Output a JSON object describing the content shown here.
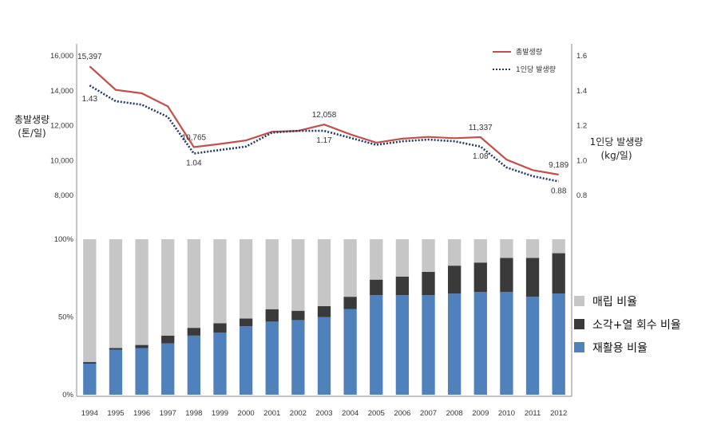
{
  "chart_data": [
    {
      "type": "line",
      "x": [
        "1994",
        "1995",
        "1996",
        "1997",
        "1998",
        "1999",
        "2000",
        "2001",
        "2002",
        "2003",
        "2004",
        "2005",
        "2006",
        "2007",
        "2008",
        "2009",
        "2010",
        "2011",
        "2012"
      ],
      "left_axis": {
        "title_line1": "총발생량",
        "title_line2": "(톤/일)",
        "ylim": [
          8000,
          16000
        ],
        "ticks": [
          "8,000",
          "10,000",
          "12,000",
          "14,000",
          "16,000"
        ]
      },
      "right_axis": {
        "title_line1": "1인당 발생량",
        "title_line2": "(kg/일)",
        "ylim": [
          0.8,
          1.6
        ],
        "ticks": [
          "0.8",
          "1.0",
          "1.2",
          "1.4",
          "1.6"
        ]
      },
      "series": [
        {
          "name": "총발생량",
          "axis": "left",
          "color": "#c0504d",
          "style": "solid",
          "values": [
            15397,
            14050,
            13850,
            13100,
            10765,
            10950,
            11150,
            11650,
            11700,
            12058,
            11500,
            11020,
            11250,
            11350,
            11280,
            11337,
            10050,
            9450,
            9189
          ],
          "labels": [
            {
              "i": 0,
              "text": "15,397"
            },
            {
              "i": 4,
              "text": "10,765"
            },
            {
              "i": 9,
              "text": "12,058"
            },
            {
              "i": 15,
              "text": "11,337"
            },
            {
              "i": 18,
              "text": "9,189"
            }
          ]
        },
        {
          "name": "1인당 발생량",
          "axis": "right",
          "color": "#1f3864",
          "style": "dotted",
          "values": [
            1.43,
            1.34,
            1.32,
            1.25,
            1.04,
            1.06,
            1.08,
            1.16,
            1.17,
            1.17,
            1.13,
            1.09,
            1.11,
            1.12,
            1.11,
            1.08,
            0.96,
            0.91,
            0.88
          ],
          "labels": [
            {
              "i": 0,
              "text": "1.43"
            },
            {
              "i": 4,
              "text": "1.04"
            },
            {
              "i": 9,
              "text": "1.17"
            },
            {
              "i": 15,
              "text": "1.08"
            },
            {
              "i": 18,
              "text": "0.88"
            }
          ]
        }
      ]
    },
    {
      "type": "bar",
      "stacked": true,
      "x": [
        "1994",
        "1995",
        "1996",
        "1997",
        "1998",
        "1999",
        "2000",
        "2001",
        "2002",
        "2003",
        "2004",
        "2005",
        "2006",
        "2007",
        "2008",
        "2009",
        "2010",
        "2011",
        "2012"
      ],
      "ylim": [
        0,
        100
      ],
      "y_ticks": [
        "0%",
        "50%",
        "100%"
      ],
      "series": [
        {
          "name": "재활용 비율",
          "color": "#4f81bd",
          "values": [
            20,
            29,
            30,
            33,
            38,
            40,
            44,
            47,
            48,
            50,
            55,
            64,
            64,
            64,
            65,
            66,
            66,
            63,
            65
          ]
        },
        {
          "name": "소각+열 회수 비율",
          "color": "#3a3a3a",
          "values": [
            1,
            1,
            2,
            5,
            5,
            6,
            5,
            8,
            6,
            7,
            8,
            10,
            12,
            15,
            18,
            19,
            22,
            25,
            26
          ]
        },
        {
          "name": "매립 비율",
          "color": "#c6c6c6",
          "values": [
            79,
            70,
            68,
            62,
            57,
            54,
            51,
            45,
            46,
            43,
            37,
            26,
            24,
            21,
            17,
            15,
            12,
            12,
            9
          ]
        }
      ],
      "legend_order": [
        "매립 비율",
        "소각+열 회수 비율",
        "재활용 비율"
      ]
    }
  ]
}
